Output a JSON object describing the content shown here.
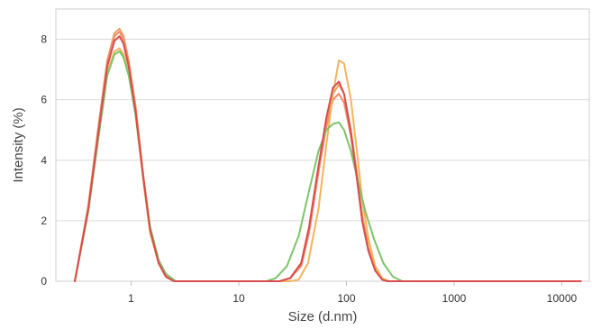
{
  "chart_data": {
    "type": "line",
    "title": "",
    "xlabel": "Size (d.nm)",
    "ylabel": "Intensity (%)",
    "x_scale": "log",
    "xlim": [
      0.2,
      18000
    ],
    "ylim": [
      0,
      9
    ],
    "x_ticks": [
      1,
      10,
      100,
      1000,
      10000
    ],
    "x_tick_labels": [
      "1",
      "10",
      "100",
      "1000",
      "10000"
    ],
    "y_ticks": [
      0,
      2,
      4,
      6,
      8
    ],
    "y_tick_labels": [
      "0",
      "2",
      "4",
      "6",
      "8"
    ],
    "grid": "horizontal",
    "legend": "none",
    "series": [
      {
        "color": "#e8a060",
        "points": [
          [
            0.3,
            0
          ],
          [
            0.4,
            2.5
          ],
          [
            0.5,
            5.2
          ],
          [
            0.6,
            7.3
          ],
          [
            0.7,
            8.2
          ],
          [
            0.78,
            8.35
          ],
          [
            0.85,
            8.1
          ],
          [
            0.95,
            7.3
          ],
          [
            1.1,
            5.8
          ],
          [
            1.3,
            3.5
          ],
          [
            1.5,
            1.8
          ],
          [
            1.8,
            0.7
          ],
          [
            2.1,
            0.2
          ],
          [
            2.5,
            0
          ],
          [
            24,
            0
          ],
          [
            30,
            0.1
          ],
          [
            38,
            0.6
          ],
          [
            45,
            1.8
          ],
          [
            55,
            3.8
          ],
          [
            65,
            5.3
          ],
          [
            75,
            6.2
          ],
          [
            85,
            6.5
          ],
          [
            95,
            6.2
          ],
          [
            110,
            5.0
          ],
          [
            125,
            3.6
          ],
          [
            140,
            2.2
          ],
          [
            160,
            1.1
          ],
          [
            185,
            0.4
          ],
          [
            215,
            0.05
          ],
          [
            240,
            0
          ],
          [
            15000,
            0
          ]
        ]
      },
      {
        "color": "#f28c6a",
        "points": [
          [
            0.3,
            0
          ],
          [
            0.4,
            2.4
          ],
          [
            0.5,
            5.1
          ],
          [
            0.6,
            7.2
          ],
          [
            0.7,
            8.1
          ],
          [
            0.78,
            8.25
          ],
          [
            0.85,
            8.0
          ],
          [
            0.95,
            7.2
          ],
          [
            1.1,
            5.7
          ],
          [
            1.3,
            3.4
          ],
          [
            1.5,
            1.7
          ],
          [
            1.8,
            0.6
          ],
          [
            2.1,
            0.15
          ],
          [
            2.5,
            0
          ],
          [
            24,
            0
          ],
          [
            30,
            0.1
          ],
          [
            38,
            0.5
          ],
          [
            45,
            1.6
          ],
          [
            55,
            3.6
          ],
          [
            65,
            5.1
          ],
          [
            75,
            6.0
          ],
          [
            85,
            6.2
          ],
          [
            95,
            5.9
          ],
          [
            110,
            4.8
          ],
          [
            125,
            3.4
          ],
          [
            140,
            2.0
          ],
          [
            160,
            1.0
          ],
          [
            185,
            0.35
          ],
          [
            215,
            0.05
          ],
          [
            240,
            0
          ],
          [
            15000,
            0
          ]
        ]
      },
      {
        "color": "#f3b35e",
        "points": [
          [
            0.3,
            0
          ],
          [
            0.4,
            2.3
          ],
          [
            0.5,
            4.9
          ],
          [
            0.6,
            6.9
          ],
          [
            0.7,
            7.6
          ],
          [
            0.78,
            7.7
          ],
          [
            0.85,
            7.5
          ],
          [
            0.95,
            6.9
          ],
          [
            1.1,
            5.5
          ],
          [
            1.3,
            3.3
          ],
          [
            1.5,
            1.6
          ],
          [
            1.8,
            0.6
          ],
          [
            2.1,
            0.15
          ],
          [
            2.5,
            0
          ],
          [
            30,
            0
          ],
          [
            36,
            0.05
          ],
          [
            44,
            0.6
          ],
          [
            55,
            2.4
          ],
          [
            65,
            4.5
          ],
          [
            75,
            6.2
          ],
          [
            85,
            7.3
          ],
          [
            95,
            7.2
          ],
          [
            110,
            6.0
          ],
          [
            125,
            4.3
          ],
          [
            140,
            2.7
          ],
          [
            160,
            1.4
          ],
          [
            185,
            0.5
          ],
          [
            215,
            0.1
          ],
          [
            250,
            0
          ],
          [
            15000,
            0
          ]
        ]
      },
      {
        "color": "#7cc46a",
        "points": [
          [
            0.3,
            0
          ],
          [
            0.4,
            2.3
          ],
          [
            0.5,
            4.8
          ],
          [
            0.6,
            6.8
          ],
          [
            0.7,
            7.5
          ],
          [
            0.78,
            7.6
          ],
          [
            0.85,
            7.4
          ],
          [
            0.95,
            6.8
          ],
          [
            1.1,
            5.5
          ],
          [
            1.3,
            3.4
          ],
          [
            1.5,
            1.8
          ],
          [
            1.8,
            0.7
          ],
          [
            2.1,
            0.25
          ],
          [
            2.6,
            0
          ],
          [
            18,
            0
          ],
          [
            22,
            0.1
          ],
          [
            28,
            0.5
          ],
          [
            36,
            1.5
          ],
          [
            45,
            3.0
          ],
          [
            55,
            4.3
          ],
          [
            65,
            5.0
          ],
          [
            75,
            5.2
          ],
          [
            85,
            5.25
          ],
          [
            95,
            5.0
          ],
          [
            110,
            4.3
          ],
          [
            130,
            3.2
          ],
          [
            150,
            2.3
          ],
          [
            180,
            1.4
          ],
          [
            220,
            0.6
          ],
          [
            270,
            0.15
          ],
          [
            330,
            0
          ],
          [
            15000,
            0
          ]
        ]
      },
      {
        "color": "#d94c50",
        "points": [
          [
            0.3,
            0
          ],
          [
            0.4,
            2.4
          ],
          [
            0.5,
            5.0
          ],
          [
            0.6,
            7.1
          ],
          [
            0.7,
            7.95
          ],
          [
            0.78,
            8.1
          ],
          [
            0.85,
            7.85
          ],
          [
            0.95,
            7.1
          ],
          [
            1.1,
            5.6
          ],
          [
            1.3,
            3.4
          ],
          [
            1.5,
            1.7
          ],
          [
            1.8,
            0.6
          ],
          [
            2.1,
            0.15
          ],
          [
            2.5,
            0
          ],
          [
            24,
            0
          ],
          [
            30,
            0.1
          ],
          [
            38,
            0.6
          ],
          [
            45,
            1.8
          ],
          [
            55,
            3.8
          ],
          [
            65,
            5.4
          ],
          [
            75,
            6.4
          ],
          [
            85,
            6.6
          ],
          [
            95,
            6.2
          ],
          [
            110,
            4.9
          ],
          [
            125,
            3.4
          ],
          [
            140,
            2.0
          ],
          [
            160,
            1.0
          ],
          [
            185,
            0.35
          ],
          [
            215,
            0.05
          ],
          [
            240,
            0
          ],
          [
            15000,
            0
          ]
        ]
      }
    ]
  }
}
